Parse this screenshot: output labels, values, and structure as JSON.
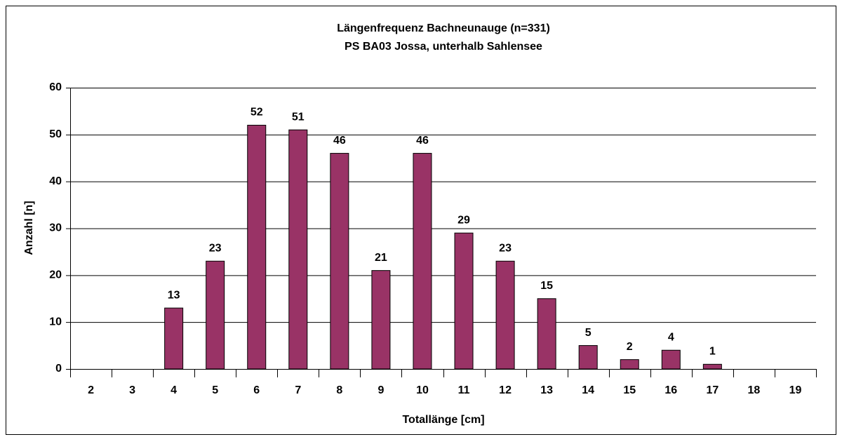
{
  "chart_data": {
    "type": "bar",
    "title": "Längenfrequenz Bachneunauge (n=331)",
    "subtitle": "PS BA03 Jossa, unterhalb Sahlensee",
    "x_label": "Totallänge [cm]",
    "y_label": "Anzahl [n]",
    "categories": [
      "2",
      "3",
      "4",
      "5",
      "6",
      "7",
      "8",
      "9",
      "10",
      "11",
      "12",
      "13",
      "14",
      "15",
      "16",
      "17",
      "18",
      "19"
    ],
    "values": [
      null,
      null,
      13,
      23,
      52,
      51,
      46,
      21,
      46,
      29,
      23,
      15,
      5,
      2,
      4,
      1,
      null,
      null
    ],
    "color": "#993366",
    "ylim": [
      0,
      60
    ],
    "yticks": [
      0,
      10,
      20,
      30,
      40,
      50,
      60
    ],
    "grid": true
  }
}
